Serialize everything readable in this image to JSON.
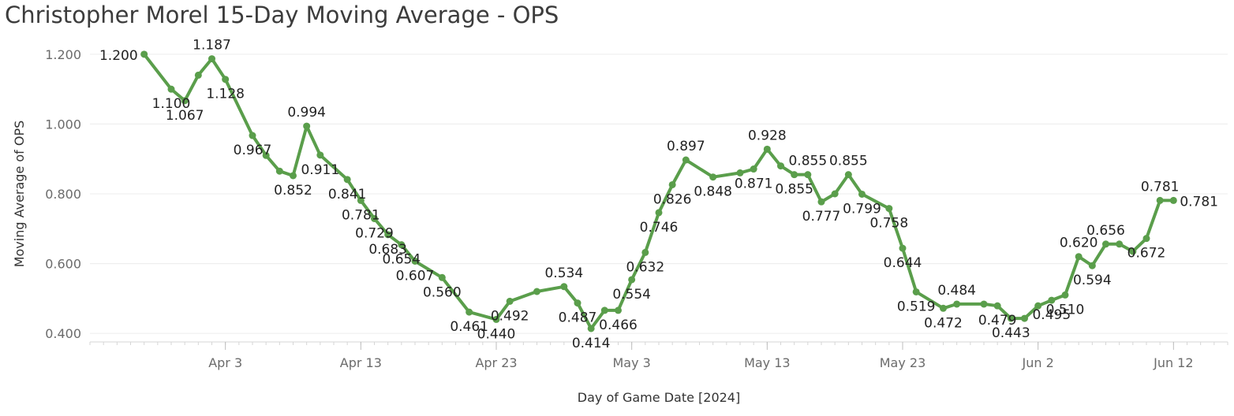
{
  "title": "Christopher Morel 15-Day Moving Average - OPS",
  "colors": {
    "line": "#5a9e4b",
    "grid": "#ececec",
    "axis": "#d6d6d6"
  },
  "chart_data": {
    "type": "line",
    "title": "Christopher Morel 15-Day Moving Average - OPS",
    "xlabel": "Day of Game Date [2024]",
    "ylabel": "Moving Average of OPS",
    "ylim": [
      0.38,
      1.22
    ],
    "yticks": [
      0.4,
      0.6,
      0.8,
      1.0,
      1.2
    ],
    "ytick_labels": [
      "0.400",
      "0.600",
      "0.800",
      "1.000",
      "1.200"
    ],
    "xlim": [
      "2024-03-24",
      "2024-06-16"
    ],
    "xtick_dates": [
      "2024-04-03",
      "2024-04-13",
      "2024-04-23",
      "2024-05-03",
      "2024-05-13",
      "2024-05-23",
      "2024-06-02",
      "2024-06-12"
    ],
    "xtick_labels": [
      "Apr 3",
      "Apr 13",
      "Apr 23",
      "May 3",
      "May 13",
      "May 23",
      "Jun 2",
      "Jun 12"
    ],
    "grid": true,
    "series": [
      {
        "points": [
          {
            "x": "2024-03-28",
            "y": 1.2,
            "label": "1.200"
          },
          {
            "x": "2024-03-30",
            "y": 1.1,
            "label": "1.100"
          },
          {
            "x": "2024-03-31",
            "y": 1.067,
            "label": "1.067"
          },
          {
            "x": "2024-04-01",
            "y": 1.14,
            "label": null
          },
          {
            "x": "2024-04-02",
            "y": 1.187,
            "label": "1.187"
          },
          {
            "x": "2024-04-03",
            "y": 1.128,
            "label": "1.128"
          },
          {
            "x": "2024-04-05",
            "y": 0.967,
            "label": "0.967"
          },
          {
            "x": "2024-04-06",
            "y": 0.91,
            "label": null
          },
          {
            "x": "2024-04-07",
            "y": 0.865,
            "label": null
          },
          {
            "x": "2024-04-08",
            "y": 0.852,
            "label": "0.852"
          },
          {
            "x": "2024-04-09",
            "y": 0.994,
            "label": "0.994"
          },
          {
            "x": "2024-04-10",
            "y": 0.911,
            "label": "0.911"
          },
          {
            "x": "2024-04-12",
            "y": 0.841,
            "label": "0.841"
          },
          {
            "x": "2024-04-13",
            "y": 0.781,
            "label": "0.781"
          },
          {
            "x": "2024-04-14",
            "y": 0.729,
            "label": "0.729"
          },
          {
            "x": "2024-04-15",
            "y": 0.683,
            "label": "0.683"
          },
          {
            "x": "2024-04-16",
            "y": 0.654,
            "label": "0.654"
          },
          {
            "x": "2024-04-17",
            "y": 0.607,
            "label": "0.607"
          },
          {
            "x": "2024-04-19",
            "y": 0.56,
            "label": "0.560"
          },
          {
            "x": "2024-04-21",
            "y": 0.461,
            "label": "0.461"
          },
          {
            "x": "2024-04-23",
            "y": 0.44,
            "label": "0.440"
          },
          {
            "x": "2024-04-24",
            "y": 0.492,
            "label": "0.492"
          },
          {
            "x": "2024-04-26",
            "y": 0.52,
            "label": null
          },
          {
            "x": "2024-04-28",
            "y": 0.534,
            "label": "0.534"
          },
          {
            "x": "2024-04-29",
            "y": 0.487,
            "label": "0.487"
          },
          {
            "x": "2024-04-30",
            "y": 0.414,
            "label": "0.414"
          },
          {
            "x": "2024-05-01",
            "y": 0.466,
            "label": null
          },
          {
            "x": "2024-05-02",
            "y": 0.466,
            "label": "0.466"
          },
          {
            "x": "2024-05-03",
            "y": 0.554,
            "label": "0.554"
          },
          {
            "x": "2024-05-04",
            "y": 0.632,
            "label": "0.632"
          },
          {
            "x": "2024-05-05",
            "y": 0.746,
            "label": "0.746"
          },
          {
            "x": "2024-05-06",
            "y": 0.826,
            "label": "0.826"
          },
          {
            "x": "2024-05-07",
            "y": 0.897,
            "label": "0.897"
          },
          {
            "x": "2024-05-09",
            "y": 0.848,
            "label": "0.848"
          },
          {
            "x": "2024-05-11",
            "y": 0.86,
            "label": null
          },
          {
            "x": "2024-05-12",
            "y": 0.871,
            "label": "0.871"
          },
          {
            "x": "2024-05-13",
            "y": 0.928,
            "label": "0.928"
          },
          {
            "x": "2024-05-14",
            "y": 0.88,
            "label": null
          },
          {
            "x": "2024-05-15",
            "y": 0.855,
            "label": "0.855"
          },
          {
            "x": "2024-05-16",
            "y": 0.855,
            "label": "0.855"
          },
          {
            "x": "2024-05-17",
            "y": 0.777,
            "label": "0.777"
          },
          {
            "x": "2024-05-18",
            "y": 0.8,
            "label": null
          },
          {
            "x": "2024-05-19",
            "y": 0.855,
            "label": "0.855"
          },
          {
            "x": "2024-05-20",
            "y": 0.799,
            "label": "0.799"
          },
          {
            "x": "2024-05-22",
            "y": 0.758,
            "label": "0.758"
          },
          {
            "x": "2024-05-23",
            "y": 0.644,
            "label": "0.644"
          },
          {
            "x": "2024-05-24",
            "y": 0.519,
            "label": "0.519"
          },
          {
            "x": "2024-05-26",
            "y": 0.472,
            "label": "0.472"
          },
          {
            "x": "2024-05-27",
            "y": 0.484,
            "label": "0.484"
          },
          {
            "x": "2024-05-29",
            "y": 0.484,
            "label": null
          },
          {
            "x": "2024-05-30",
            "y": 0.479,
            "label": "0.479"
          },
          {
            "x": "2024-05-31",
            "y": 0.443,
            "label": "0.443"
          },
          {
            "x": "2024-06-01",
            "y": 0.443,
            "label": null
          },
          {
            "x": "2024-06-02",
            "y": 0.479,
            "label": null
          },
          {
            "x": "2024-06-03",
            "y": 0.495,
            "label": "0.495"
          },
          {
            "x": "2024-06-04",
            "y": 0.51,
            "label": "0.510"
          },
          {
            "x": "2024-06-05",
            "y": 0.62,
            "label": "0.620"
          },
          {
            "x": "2024-06-06",
            "y": 0.594,
            "label": "0.594"
          },
          {
            "x": "2024-06-07",
            "y": 0.656,
            "label": "0.656"
          },
          {
            "x": "2024-06-08",
            "y": 0.656,
            "label": null
          },
          {
            "x": "2024-06-09",
            "y": 0.635,
            "label": null
          },
          {
            "x": "2024-06-10",
            "y": 0.672,
            "label": "0.672"
          },
          {
            "x": "2024-06-11",
            "y": 0.781,
            "label": "0.781"
          },
          {
            "x": "2024-06-12",
            "y": 0.781,
            "label": "0.781"
          }
        ]
      }
    ]
  }
}
